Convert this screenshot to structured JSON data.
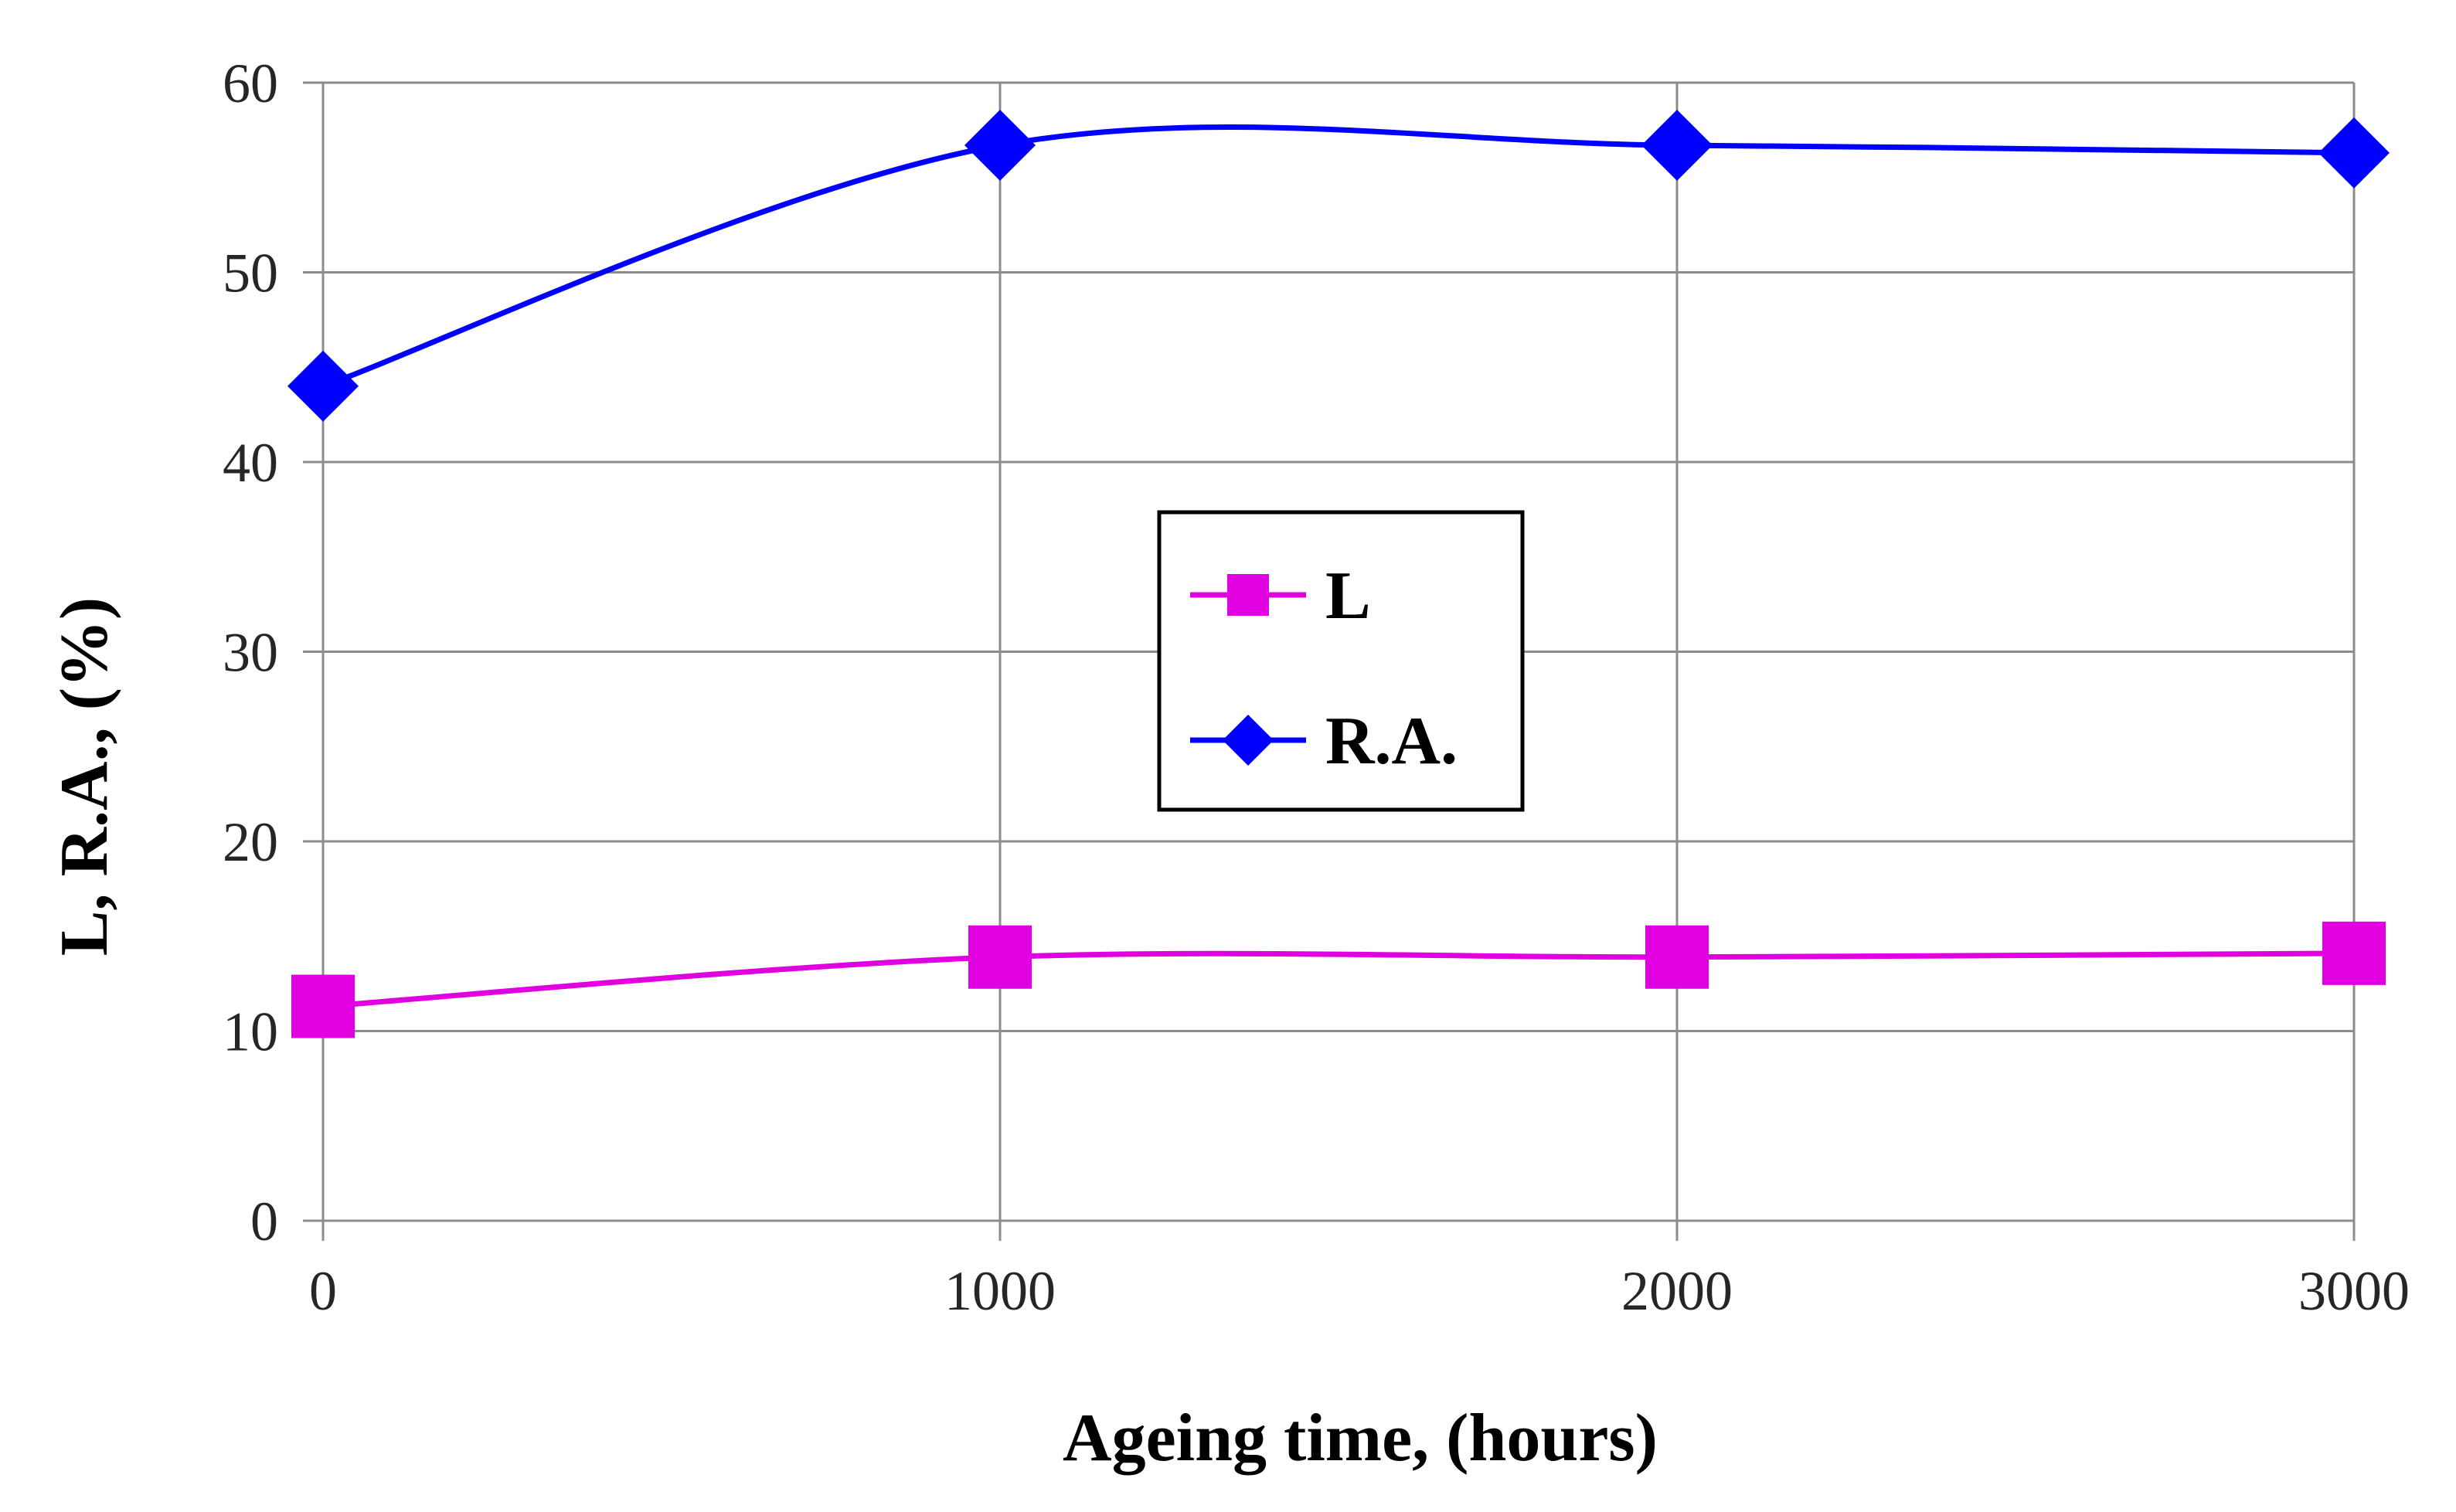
{
  "chart_data": {
    "type": "line",
    "title": "",
    "xlabel": "Ageing time, (hours)",
    "ylabel": "L, R.A., (%)",
    "x": [
      0,
      1000,
      2000,
      3000
    ],
    "xlim": [
      0,
      3000
    ],
    "ylim": [
      0,
      60
    ],
    "xticks": [
      0,
      1000,
      2000,
      3000
    ],
    "yticks": [
      0,
      10,
      20,
      30,
      40,
      50,
      60
    ],
    "grid": true,
    "smooth": true,
    "legend_position": "center",
    "series": [
      {
        "name": "L",
        "values": [
          11.3,
          13.9,
          13.9,
          14.1
        ],
        "color": "#e000e0",
        "marker": "square"
      },
      {
        "name": "R.A.",
        "values": [
          44.0,
          56.7,
          56.7,
          56.3
        ],
        "color": "#0000ff",
        "marker": "diamond"
      }
    ]
  }
}
